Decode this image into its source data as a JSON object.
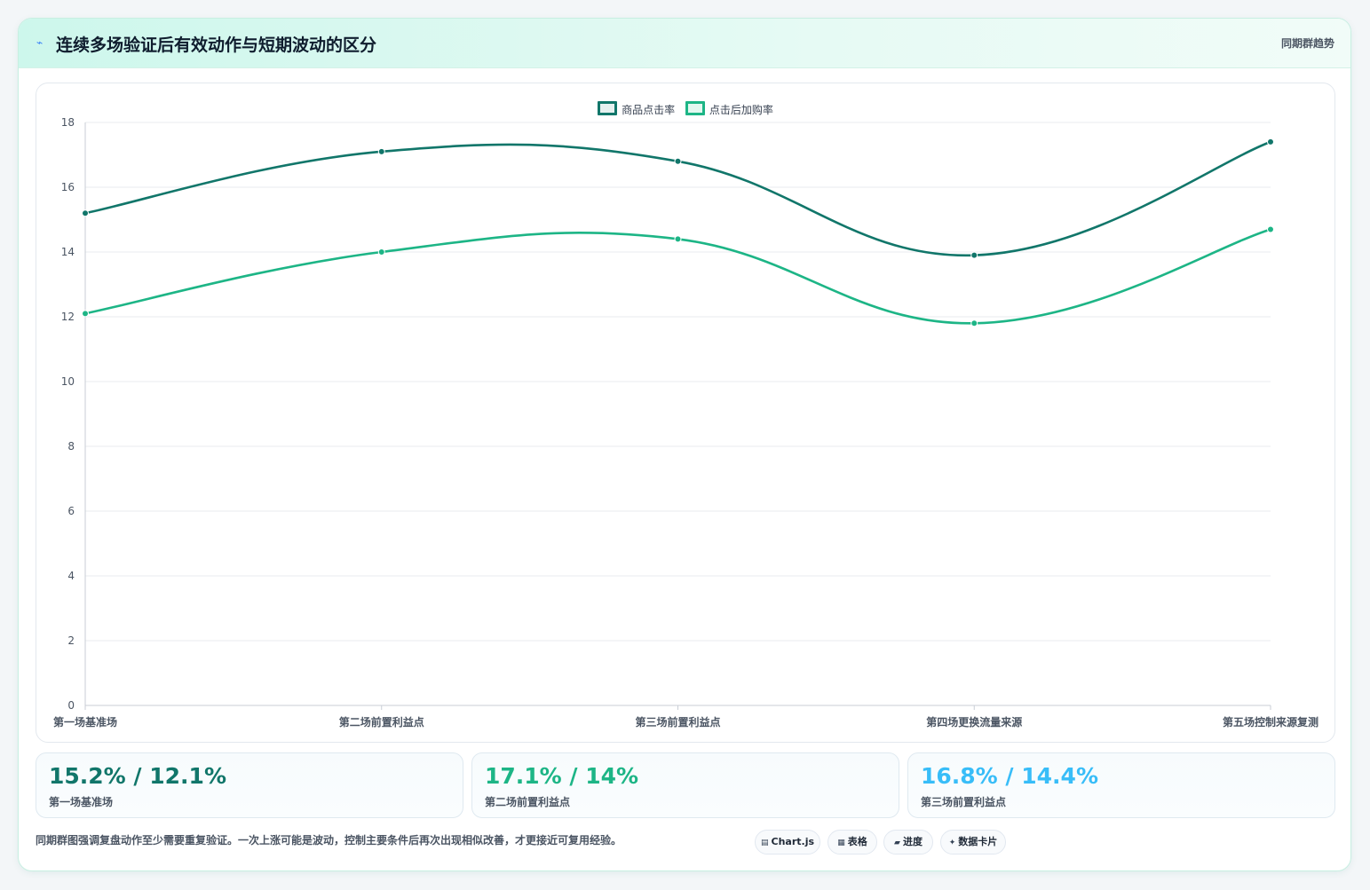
{
  "header": {
    "icon": "chart-line-icon",
    "title": "连续多场验证后有效动作与短期波动的区分",
    "right_label": "同期群趋势"
  },
  "chart_data": {
    "type": "line",
    "categories": [
      "第一场基准场",
      "第二场前置利益点",
      "第三场前置利益点",
      "第四场更换流量来源",
      "第五场控制来源复测"
    ],
    "series": [
      {
        "name": "商品点击率",
        "values": [
          15.2,
          17.1,
          16.8,
          13.9,
          17.4
        ],
        "color": "#11766a"
      },
      {
        "name": "点击后加购率",
        "values": [
          12.1,
          14.0,
          14.4,
          11.8,
          14.7
        ],
        "color": "#1db586"
      }
    ],
    "yticks": [
      "0",
      "2",
      "4",
      "6",
      "8",
      "10",
      "12",
      "14",
      "16",
      "18"
    ],
    "ylim": [
      0,
      18
    ],
    "grid": true,
    "legend": "top-center"
  },
  "cards": [
    {
      "value": "15.2% / 12.1%",
      "label": "第一场基准场",
      "color": "#11766a"
    },
    {
      "value": "17.1% / 14%",
      "label": "第二场前置利益点",
      "color": "#1db586"
    },
    {
      "value": "16.8% / 14.4%",
      "label": "第三场前置利益点",
      "color": "#38bdf8"
    }
  ],
  "footnote": "同期群图强调复盘动作至少需要重复验证。一次上涨可能是波动，控制主要条件后再次出现相似改善，才更接近可复用经验。",
  "tags": [
    {
      "icon": "▤",
      "label": "Chart.js"
    },
    {
      "icon": "▦",
      "label": "表格"
    },
    {
      "icon": "▰",
      "label": "进度"
    },
    {
      "icon": "✦",
      "label": "数据卡片"
    }
  ]
}
